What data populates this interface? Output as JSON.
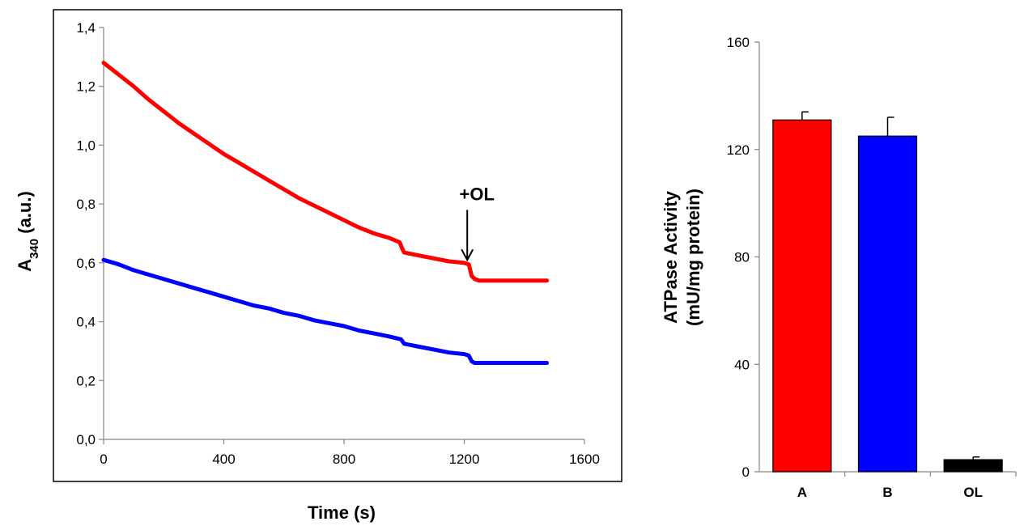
{
  "chart_data": [
    {
      "type": "line",
      "xlabel": "Time (s)",
      "ylabel_main": "A",
      "ylabel_sub": "340",
      "ylabel_unit": " (a.u.)",
      "xlim": [
        0,
        1600
      ],
      "ylim": [
        0.0,
        1.4
      ],
      "xticks": [
        0,
        400,
        800,
        1200,
        1600
      ],
      "xtick_labels": [
        "0",
        "400",
        "800",
        "1200",
        "1600"
      ],
      "yticks": [
        0.0,
        0.2,
        0.4,
        0.6,
        0.8,
        1.0,
        1.2,
        1.4
      ],
      "ytick_labels": [
        "0,0",
        "0,2",
        "0,4",
        "0,6",
        "0,8",
        "1,0",
        "1,2",
        "1,4"
      ],
      "series": [
        {
          "color": "#ff0000",
          "x": [
            0,
            50,
            100,
            150,
            200,
            250,
            300,
            350,
            400,
            450,
            500,
            550,
            600,
            650,
            700,
            750,
            800,
            850,
            900,
            950,
            985,
            995,
            1000,
            1050,
            1100,
            1150,
            1200,
            1215,
            1225,
            1235,
            1250,
            1300,
            1350,
            1400,
            1475
          ],
          "y": [
            1.28,
            1.24,
            1.2,
            1.155,
            1.115,
            1.075,
            1.04,
            1.005,
            0.97,
            0.94,
            0.91,
            0.88,
            0.85,
            0.82,
            0.795,
            0.77,
            0.745,
            0.72,
            0.7,
            0.685,
            0.67,
            0.645,
            0.635,
            0.625,
            0.615,
            0.605,
            0.6,
            0.595,
            0.555,
            0.545,
            0.54,
            0.54,
            0.54,
            0.54,
            0.54
          ]
        },
        {
          "color": "#0000ff",
          "x": [
            0,
            50,
            100,
            150,
            200,
            250,
            300,
            350,
            400,
            450,
            500,
            550,
            600,
            650,
            700,
            750,
            800,
            850,
            900,
            950,
            990,
            1000,
            1050,
            1100,
            1150,
            1200,
            1215,
            1225,
            1235,
            1250,
            1300,
            1350,
            1400,
            1475
          ],
          "y": [
            0.61,
            0.595,
            0.575,
            0.56,
            0.545,
            0.53,
            0.515,
            0.5,
            0.485,
            0.47,
            0.455,
            0.445,
            0.43,
            0.42,
            0.405,
            0.395,
            0.385,
            0.37,
            0.36,
            0.35,
            0.34,
            0.325,
            0.315,
            0.305,
            0.295,
            0.29,
            0.285,
            0.265,
            0.26,
            0.26,
            0.26,
            0.26,
            0.26,
            0.26
          ]
        }
      ],
      "annotation": {
        "text": "+OL",
        "x": 1210,
        "y_from": 0.78,
        "y_to": 0.61
      }
    },
    {
      "type": "bar",
      "ylabel_line1": "ATPase Activity",
      "ylabel_line2": "(mU/mg protein)",
      "ylim": [
        0,
        160
      ],
      "yticks": [
        0,
        40,
        80,
        120,
        160
      ],
      "ytick_labels": [
        "0",
        "40",
        "80",
        "120",
        "160"
      ],
      "categories": [
        "A",
        "B",
        "OL"
      ],
      "values": [
        131,
        125,
        4.5
      ],
      "errors": [
        3,
        7,
        1
      ],
      "colors": [
        "#ff0000",
        "#0000ff",
        "#000000"
      ]
    }
  ]
}
